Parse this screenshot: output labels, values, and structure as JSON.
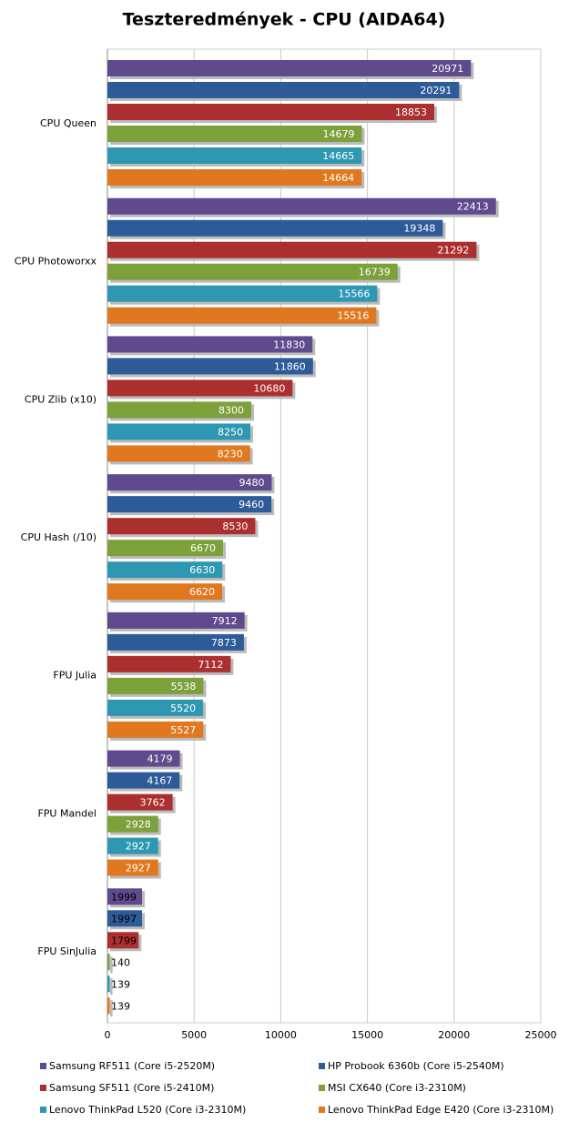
{
  "chart_data": {
    "type": "hbar",
    "title": "Teszteredmények - CPU (AIDA64)",
    "categories": [
      "CPU Queen",
      "CPU Photoworxx",
      "CPU Zlib (x10)",
      "CPU Hash (/10)",
      "FPU Julia",
      "FPU Mandel",
      "FPU SinJulia"
    ],
    "series": [
      {
        "name": "Samsung RF511 (Core i5-2520M)",
        "color": "#5e4a8c",
        "values": [
          20971,
          22413,
          11830,
          9480,
          7912,
          4179,
          1999
        ]
      },
      {
        "name": "HP Probook 6360b (Core i5-2540M)",
        "color": "#2d5b98",
        "values": [
          20291,
          19348,
          11860,
          9460,
          7873,
          4167,
          1997
        ]
      },
      {
        "name": "Samsung SF511 (Core i5-2410M)",
        "color": "#ac2f2f",
        "values": [
          18853,
          21292,
          10680,
          8530,
          7112,
          3762,
          1799
        ]
      },
      {
        "name": "MSI CX640 (Core i3-2310M)",
        "color": "#7ca03a",
        "values": [
          14679,
          16739,
          8300,
          6670,
          5538,
          2928,
          140
        ]
      },
      {
        "name": "Lenovo ThinkPad L520 (Core i3-2310M)",
        "color": "#2e98b3",
        "values": [
          14665,
          15566,
          8250,
          6630,
          5520,
          2927,
          139
        ]
      },
      {
        "name": "Lenovo ThinkPad Edge E420 (Core i3-2310M)",
        "color": "#e0781f",
        "values": [
          14664,
          15516,
          8230,
          6620,
          5527,
          2927,
          139
        ]
      }
    ],
    "xlim": [
      0,
      25000
    ],
    "xticks": [
      0,
      5000,
      10000,
      15000,
      20000,
      25000
    ],
    "grid": true
  }
}
